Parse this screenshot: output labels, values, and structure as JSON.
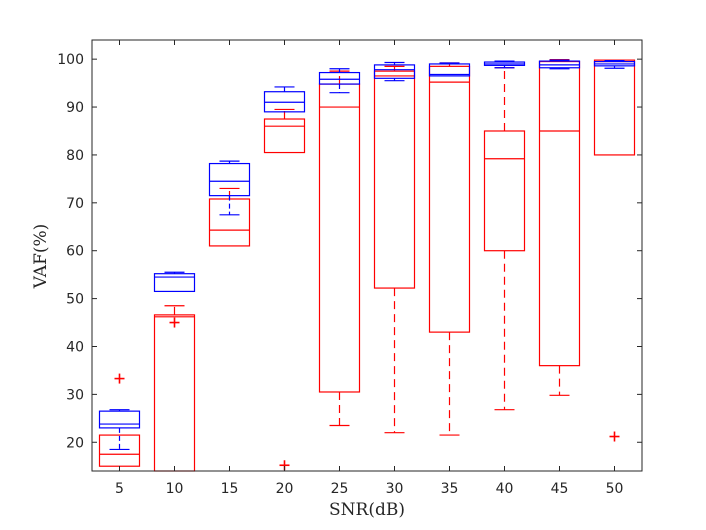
{
  "chart_data": {
    "type": "boxplot",
    "title": "",
    "xlabel": "SNR(dB)",
    "ylabel": "VAF(%)",
    "ylim": [
      14,
      104
    ],
    "yticks": [
      20,
      30,
      40,
      50,
      60,
      70,
      80,
      90,
      100
    ],
    "categories": [
      "5",
      "10",
      "15",
      "20",
      "25",
      "30",
      "35",
      "40",
      "45",
      "50"
    ],
    "colors": {
      "blue": "#0000ff",
      "red": "#ff0000",
      "axis": "#262626"
    },
    "series": [
      {
        "name": "blue",
        "boxes": [
          {
            "q1": 23.0,
            "median": 23.8,
            "q3": 26.5,
            "wlo": 18.5,
            "whi": 26.8,
            "outliers": []
          },
          {
            "q1": 51.5,
            "median": 54.5,
            "q3": 55.2,
            "wlo": 51.5,
            "whi": 55.5,
            "outliers": []
          },
          {
            "q1": 71.5,
            "median": 74.5,
            "q3": 78.2,
            "wlo": 67.5,
            "whi": 78.7,
            "outliers": []
          },
          {
            "q1": 89.0,
            "median": 91.0,
            "q3": 93.2,
            "wlo": 89.0,
            "whi": 94.2,
            "outliers": []
          },
          {
            "q1": 94.8,
            "median": 95.8,
            "q3": 97.2,
            "wlo": 93.0,
            "whi": 98.0,
            "outliers": []
          },
          {
            "q1": 96.0,
            "median": 97.8,
            "q3": 98.8,
            "wlo": 95.5,
            "whi": 99.3,
            "outliers": []
          },
          {
            "q1": 96.5,
            "median": 96.8,
            "q3": 99.0,
            "wlo": 96.5,
            "whi": 99.2,
            "outliers": []
          },
          {
            "q1": 98.7,
            "median": 99.0,
            "q3": 99.4,
            "wlo": 98.2,
            "whi": 99.6,
            "outliers": []
          },
          {
            "q1": 98.2,
            "median": 98.8,
            "q3": 99.6,
            "wlo": 98.0,
            "whi": 99.8,
            "outliers": []
          },
          {
            "q1": 98.6,
            "median": 99.0,
            "q3": 99.5,
            "wlo": 98.1,
            "whi": 99.7,
            "outliers": []
          }
        ]
      },
      {
        "name": "red",
        "boxes": [
          {
            "q1": 15.0,
            "median": 17.5,
            "q3": 21.5,
            "wlo": 15.0,
            "whi": 21.5,
            "outliers": [
              33.3
            ]
          },
          {
            "q1": 14.0,
            "median": 46.2,
            "q3": 46.6,
            "wlo": 14.0,
            "whi": 48.5,
            "outliers": [
              45.0
            ]
          },
          {
            "q1": 61.0,
            "median": 64.3,
            "q3": 70.8,
            "wlo": 61.0,
            "whi": 73.0,
            "outliers": []
          },
          {
            "q1": 80.5,
            "median": 86.0,
            "q3": 87.5,
            "wlo": 80.5,
            "whi": 89.5,
            "outliers": [
              15.2
            ]
          },
          {
            "q1": 30.5,
            "median": 90.0,
            "q3": 94.8,
            "wlo": 23.5,
            "whi": 97.5,
            "outliers": []
          },
          {
            "q1": 52.2,
            "median": 96.5,
            "q3": 97.5,
            "wlo": 22.0,
            "whi": 98.5,
            "outliers": []
          },
          {
            "q1": 43.0,
            "median": 95.2,
            "q3": 98.5,
            "wlo": 21.5,
            "whi": 99.2,
            "outliers": []
          },
          {
            "q1": 60.0,
            "median": 79.2,
            "q3": 85.0,
            "wlo": 26.8,
            "whi": 98.2,
            "outliers": []
          },
          {
            "q1": 36.0,
            "median": 85.0,
            "q3": 99.5,
            "wlo": 29.8,
            "whi": 99.9,
            "outliers": []
          },
          {
            "q1": 80.0,
            "median": 99.5,
            "q3": 99.8,
            "wlo": 80.0,
            "whi": 99.9,
            "outliers": [
              21.2
            ]
          }
        ]
      }
    ]
  }
}
